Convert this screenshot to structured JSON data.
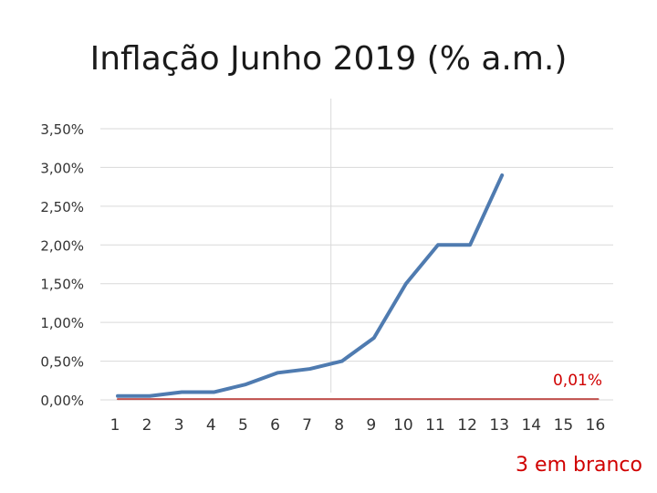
{
  "chart_data": {
    "type": "line",
    "title": "Inflação Junho 2019 (% a.m.)",
    "xlabel": "",
    "ylabel": "",
    "categories": [
      "1",
      "2",
      "3",
      "4",
      "5",
      "6",
      "7",
      "8",
      "9",
      "10",
      "11",
      "12",
      "13",
      "14",
      "15",
      "16"
    ],
    "y_tick_labels": [
      "0,00%",
      "0,50%",
      "1,00%",
      "1,50%",
      "2,00%",
      "2,50%",
      "3,00%",
      "3,50%"
    ],
    "y_ticks": [
      0,
      0.5,
      1.0,
      1.5,
      2.0,
      2.5,
      3.0,
      3.5
    ],
    "ylim": [
      0,
      3.5
    ],
    "grid": true,
    "series": [
      {
        "name": "",
        "color": "#4f7bb0",
        "values": [
          0.05,
          0.05,
          0.1,
          0.1,
          0.2,
          0.35,
          0.4,
          0.5,
          0.8,
          1.5,
          2.0,
          2.0,
          2.9,
          null,
          null,
          null
        ]
      },
      {
        "name": "",
        "color": "#c0504d",
        "values": [
          0.01,
          0.01,
          0.01,
          0.01,
          0.01,
          0.01,
          0.01,
          0.01,
          0.01,
          0.01,
          0.01,
          0.01,
          0.01,
          0.01,
          0.01,
          0.01
        ]
      }
    ],
    "annotations": [
      {
        "text": "0,01%",
        "color": "#d00000"
      },
      {
        "text": "3 em branco",
        "color": "#d00000"
      }
    ],
    "vertical_line_after_category": "8"
  }
}
